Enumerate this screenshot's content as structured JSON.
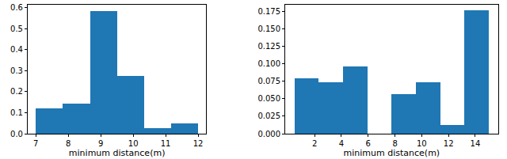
{
  "chart_data": [
    {
      "type": "histogram",
      "x_label": "minimum distance(m)",
      "bins": [
        7,
        7.833,
        8.667,
        9.5,
        10.333,
        11.167,
        12
      ],
      "values": [
        0.12,
        0.145,
        0.585,
        0.275,
        0.025,
        0.048
      ],
      "color": "#1f77b4",
      "xlim": [
        6.75,
        12.25
      ],
      "xticks": [
        7,
        8,
        9,
        10,
        11,
        12
      ],
      "ylim": [
        0,
        0.615
      ],
      "yticks": [
        {
          "value": 0,
          "label": "0.0"
        },
        0.1,
        0.2,
        0.3,
        0.4,
        0.5,
        0.6
      ]
    },
    {
      "type": "histogram",
      "x_label": "minimum distance(m)",
      "bins": [
        0.5,
        2.31,
        4.13,
        5.94,
        7.75,
        9.56,
        11.38,
        13.19,
        15
      ],
      "values": [
        0.08,
        0.074,
        0.097,
        0,
        0.057,
        0.074,
        0.012,
        0.177
      ],
      "color": "#1f77b4",
      "xlim": [
        -0.2,
        15.7
      ],
      "xticks": [
        2,
        4,
        6,
        8,
        10,
        12,
        14
      ],
      "ylim": [
        0,
        0.185
      ],
      "yticks": [
        {
          "value": 0,
          "label": "0.000"
        },
        {
          "value": 0.025,
          "label": "0.025"
        },
        {
          "value": 0.05,
          "label": "0.050"
        },
        {
          "value": 0.075,
          "label": "0.075"
        },
        {
          "value": 0.1,
          "label": "0.100"
        },
        {
          "value": 0.125,
          "label": "0.125"
        },
        {
          "value": 0.15,
          "label": "0.150"
        },
        {
          "value": 0.175,
          "label": "0.175"
        }
      ]
    }
  ]
}
